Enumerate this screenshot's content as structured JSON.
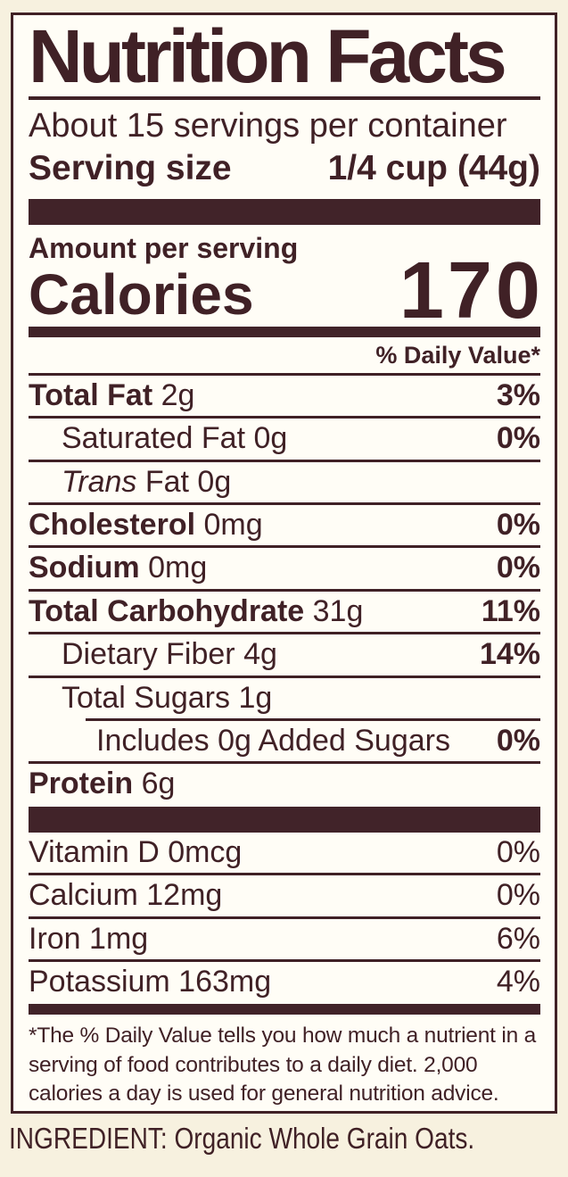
{
  "colors": {
    "page_background": "#f7f1df",
    "label_background": "#fffdf6",
    "ink": "#402126"
  },
  "label": {
    "title": "Nutrition Facts",
    "servings_per_container": "About 15 servings per container",
    "serving_size": {
      "label": "Serving size",
      "value": "1/4 cup (44g)"
    },
    "amount_per_serving": "Amount per serving",
    "calories": {
      "label": "Calories",
      "value": "170"
    },
    "daily_value_header": "% Daily Value*",
    "nutrient_rows": [
      {
        "name": "Total Fat",
        "amount": "2g",
        "dv": "3%",
        "indent": 0,
        "bold_name": true,
        "dv_bold": true,
        "rule_after": "full"
      },
      {
        "name": "Saturated Fat",
        "amount": "0g",
        "dv": "0%",
        "indent": 1,
        "bold_name": false,
        "dv_bold": true,
        "rule_after": "full"
      },
      {
        "name": "Trans",
        "italic_name": true,
        "amount": "Fat 0g",
        "dv": "",
        "indent": 1,
        "bold_name": false,
        "rule_after": "full"
      },
      {
        "name": "Cholesterol",
        "amount": "0mg",
        "dv": "0%",
        "indent": 0,
        "bold_name": true,
        "dv_bold": true,
        "rule_after": "full"
      },
      {
        "name": "Sodium",
        "amount": "0mg",
        "dv": "0%",
        "indent": 0,
        "bold_name": true,
        "dv_bold": true,
        "rule_after": "full"
      },
      {
        "name": "Total Carbohydrate",
        "amount": "31g",
        "dv": "11%",
        "indent": 0,
        "bold_name": true,
        "dv_bold": true,
        "rule_after": "full"
      },
      {
        "name": "Dietary Fiber",
        "amount": "4g",
        "dv": "14%",
        "indent": 1,
        "bold_name": false,
        "dv_bold": true,
        "rule_after": "full"
      },
      {
        "name": "Total Sugars",
        "amount": "1g",
        "dv": "",
        "indent": 1,
        "bold_name": false,
        "rule_after": "indented"
      },
      {
        "name": "Includes 0g Added Sugars",
        "amount": "",
        "dv": "0%",
        "indent": 2,
        "bold_name": false,
        "dv_bold": true,
        "rule_after": "full"
      },
      {
        "name": "Protein",
        "amount": "6g",
        "dv": "",
        "indent": 0,
        "bold_name": true,
        "rule_after": "none"
      }
    ],
    "micronutrient_rows": [
      {
        "name": "Vitamin D 0mcg",
        "dv": "0%"
      },
      {
        "name": "Calcium 12mg",
        "dv": "0%"
      },
      {
        "name": "Iron 1mg",
        "dv": "6%"
      },
      {
        "name": "Potassium 163mg",
        "dv": "4%"
      }
    ],
    "footnote": "*The % Daily Value tells you how much a nutrient in a serving of food contributes to a daily diet. 2,000 calories a day is used for general nutrition advice."
  },
  "ingredient_line": "INGREDIENT: Organic Whole Grain Oats."
}
